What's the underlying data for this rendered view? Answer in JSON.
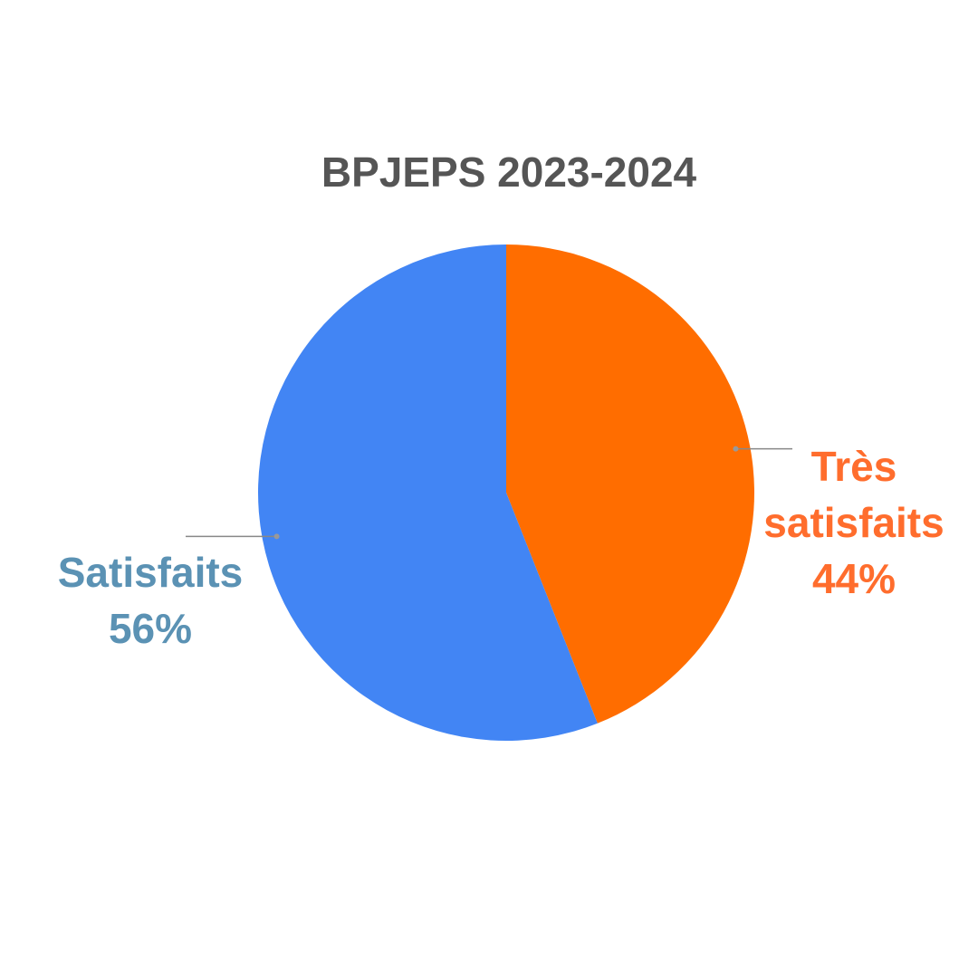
{
  "chart_data": {
    "type": "pie",
    "title": "BPJEPS 2023-2024",
    "slices": [
      {
        "label_lines": [
          "Très",
          "satisfaits"
        ],
        "percent_label": "44%",
        "value": 44,
        "color": "#ff6d00",
        "label_color": "#ff6d2d"
      },
      {
        "label_lines": [
          "Satisfaits"
        ],
        "percent_label": "56%",
        "value": 56,
        "color": "#4285f4",
        "label_color": "#5b92b4"
      }
    ],
    "start_angle_deg": 0,
    "direction": "clockwise",
    "legend": "none"
  }
}
